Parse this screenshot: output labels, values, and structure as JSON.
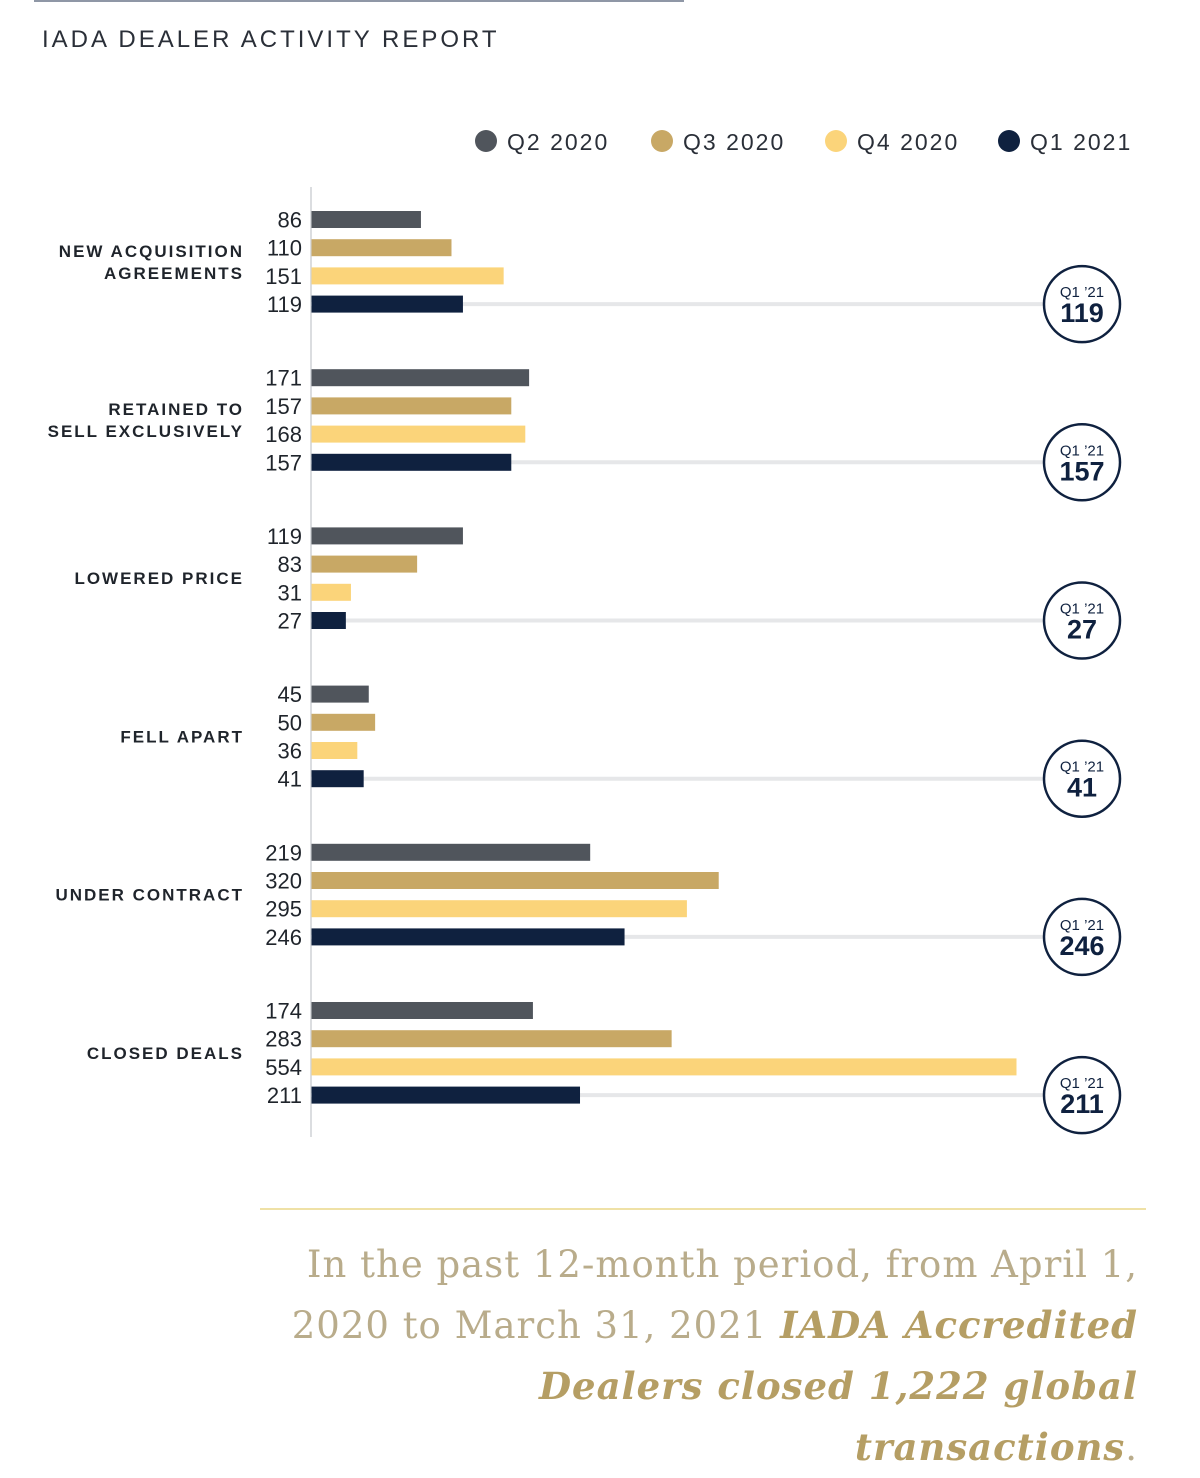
{
  "title": "IADA DEALER ACTIVITY REPORT",
  "chart_data": {
    "type": "bar",
    "orientation": "horizontal",
    "categories": [
      [
        "NEW ACQUISITION",
        "AGREEMENTS"
      ],
      [
        "RETAINED TO",
        "SELL EXCLUSIVELY"
      ],
      [
        "LOWERED PRICE"
      ],
      [
        "FELL APART"
      ],
      [
        "UNDER CONTRACT"
      ],
      [
        "CLOSED DEALS"
      ]
    ],
    "series": [
      {
        "name": "Q2 2020",
        "color": "#50555c",
        "values": [
          86,
          171,
          119,
          45,
          219,
          174
        ]
      },
      {
        "name": "Q3 2020",
        "color": "#c8a865",
        "values": [
          110,
          157,
          83,
          50,
          320,
          283
        ]
      },
      {
        "name": "Q4 2020",
        "color": "#fbd47a",
        "values": [
          151,
          168,
          31,
          36,
          295,
          554
        ]
      },
      {
        "name": "Q1 2021",
        "color": "#0f213f",
        "values": [
          119,
          157,
          27,
          41,
          246,
          211
        ]
      }
    ],
    "badge_label": "Q1 ’21",
    "badge_values": [
      "119",
      "157",
      "27",
      "41",
      "246",
      "211"
    ],
    "legend_position": "top-right",
    "xlim": [
      0,
      554
    ]
  },
  "caption": {
    "plain": "In the past 12-month period, from April 1, 2020 to March 31, 2021 ",
    "emphasis": "IADA Accredited Dealers closed 1,222 global transactions",
    "end": "."
  }
}
